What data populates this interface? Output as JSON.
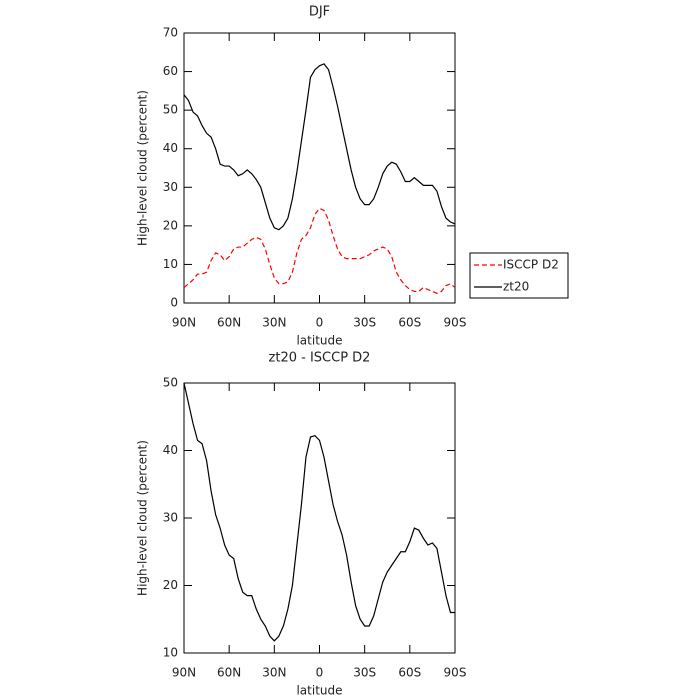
{
  "chart_data": [
    {
      "type": "line",
      "title": "DJF",
      "x_label": "latitude",
      "y_label": "High-level cloud (percent)",
      "x": [
        90,
        87,
        84,
        81,
        78,
        75,
        72,
        69,
        66,
        63,
        60,
        57,
        54,
        51,
        48,
        45,
        42,
        39,
        36,
        33,
        30,
        27,
        24,
        21,
        18,
        15,
        12,
        9,
        6,
        3,
        0,
        -3,
        -6,
        -9,
        -12,
        -15,
        -18,
        -21,
        -24,
        -27,
        -30,
        -33,
        -36,
        -39,
        -42,
        -45,
        -48,
        -51,
        -54,
        -57,
        -60,
        -63,
        -66,
        -69,
        -72,
        -75,
        -78,
        -81,
        -84,
        -87,
        -90
      ],
      "xlim": [
        90,
        -90
      ],
      "xticks": [
        {
          "value": 90,
          "label": "90N"
        },
        {
          "value": 60,
          "label": "60N"
        },
        {
          "value": 30,
          "label": "30N"
        },
        0,
        {
          "value": -30,
          "label": "30S"
        },
        {
          "value": -60,
          "label": "60S"
        },
        {
          "value": -90,
          "label": "90S"
        }
      ],
      "ylim": [
        0,
        70
      ],
      "yticks": [
        0,
        10,
        20,
        30,
        40,
        50,
        60,
        70
      ],
      "legend": "right",
      "series": [
        {
          "name": "ISCCP D2",
          "color": "#ff0000",
          "linestyle": "dashed",
          "values": [
            4,
            5,
            6,
            7.5,
            7.5,
            8,
            11,
            13,
            12.5,
            11,
            12,
            14,
            14.5,
            14.5,
            15.5,
            16.5,
            17,
            16.5,
            14,
            10,
            6.5,
            5,
            5,
            5.5,
            8,
            13,
            16.5,
            17.5,
            19.5,
            23,
            24.5,
            24,
            21.5,
            17.5,
            14,
            12,
            11.5,
            11.5,
            11.5,
            11.5,
            12,
            12.5,
            13.5,
            14,
            14.5,
            14,
            12,
            8,
            6,
            4.5,
            3.5,
            3,
            3,
            4,
            3.5,
            3,
            2.5,
            3,
            4.5,
            5,
            4
          ]
        },
        {
          "name": "zt20",
          "color": "#000000",
          "linestyle": "solid",
          "values": [
            54,
            52.5,
            49.5,
            48.5,
            46,
            44,
            43,
            40,
            36,
            35.5,
            35.5,
            34.5,
            33,
            33.5,
            34.5,
            33.5,
            32,
            30,
            26,
            22,
            19.5,
            19,
            20,
            22,
            27,
            34,
            42,
            50,
            58.5,
            60.5,
            61.5,
            62,
            60.5,
            56,
            51,
            45.5,
            40,
            34.5,
            30,
            27,
            25.5,
            25.5,
            27,
            30,
            33.5,
            35.5,
            36.5,
            36,
            34,
            31.5,
            31.5,
            32.5,
            31.5,
            30.5,
            30.5,
            30.5,
            29,
            25,
            22,
            21,
            20.5
          ]
        }
      ]
    },
    {
      "type": "line",
      "title": "zt20 - ISCCP D2",
      "x_label": "latitude",
      "y_label": "High-level cloud (percent)",
      "x": [
        90,
        87,
        84,
        81,
        78,
        75,
        72,
        69,
        66,
        63,
        60,
        57,
        54,
        51,
        48,
        45,
        42,
        39,
        36,
        33,
        30,
        27,
        24,
        21,
        18,
        15,
        12,
        9,
        6,
        3,
        0,
        -3,
        -6,
        -9,
        -12,
        -15,
        -18,
        -21,
        -24,
        -27,
        -30,
        -33,
        -36,
        -39,
        -42,
        -45,
        -48,
        -51,
        -54,
        -57,
        -60,
        -63,
        -66,
        -69,
        -72,
        -75,
        -78,
        -81,
        -84,
        -87,
        -90
      ],
      "xlim": [
        90,
        -90
      ],
      "xticks": [
        {
          "value": 90,
          "label": "90N"
        },
        {
          "value": 60,
          "label": "60N"
        },
        {
          "value": 30,
          "label": "30N"
        },
        0,
        {
          "value": -30,
          "label": "30S"
        },
        {
          "value": -60,
          "label": "60S"
        },
        {
          "value": -90,
          "label": "90S"
        }
      ],
      "ylim": [
        10,
        50
      ],
      "yticks": [
        10,
        20,
        30,
        40,
        50
      ],
      "color": "#000000",
      "values": [
        50,
        47,
        44,
        41.5,
        41,
        38.5,
        34,
        30.5,
        28.5,
        26,
        24.5,
        24,
        21,
        19,
        18.5,
        18.5,
        16.5,
        15,
        14,
        12.5,
        11.8,
        12.5,
        14,
        16.5,
        20,
        26,
        32,
        39,
        42,
        42.2,
        41.5,
        39,
        35.5,
        32,
        29.5,
        27.5,
        24.5,
        20.5,
        17,
        15,
        14,
        14,
        15.5,
        18,
        20.5,
        22,
        23,
        24,
        25,
        25,
        26.5,
        28.5,
        28.2,
        27,
        26,
        26.3,
        25.5,
        22,
        18.5,
        16,
        16
      ]
    }
  ]
}
